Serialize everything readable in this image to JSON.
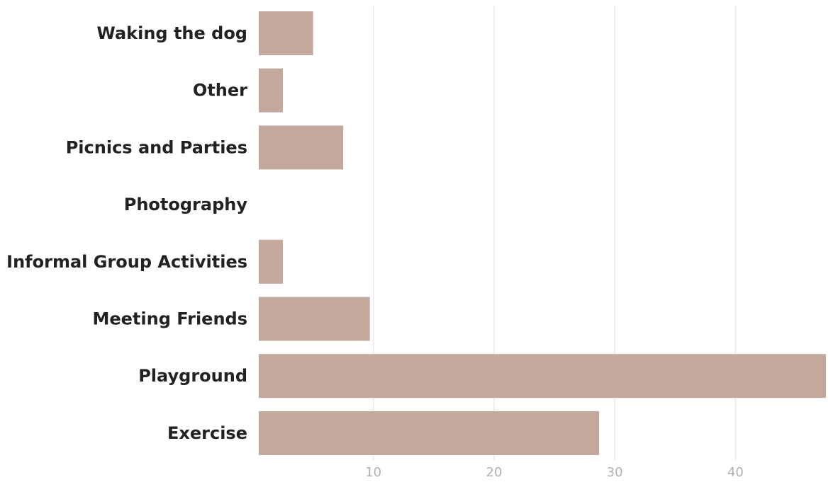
{
  "chart_data": {
    "type": "bar",
    "orientation": "horizontal",
    "categories": [
      "Waking the dog",
      "Other",
      "Picnics and Parties",
      "Photography",
      "Informal Group Activities",
      "Meeting Friends",
      "Playground",
      "Exercise"
    ],
    "values": [
      5,
      2.5,
      7.5,
      0,
      2.5,
      9.7,
      47.5,
      28.7
    ],
    "xlim": [
      0.5,
      47.5
    ],
    "xticks": [
      10,
      20,
      30,
      40
    ],
    "xtick_labels": [
      "10",
      "20",
      "30",
      "40"
    ],
    "grid": true,
    "bar_color": "#c2a89d",
    "label_color": "#222222",
    "tick_color": "#b0b0b0",
    "grid_color": "#e8e8e8",
    "legend": "none",
    "title": "",
    "xlabel": "",
    "ylabel": ""
  }
}
